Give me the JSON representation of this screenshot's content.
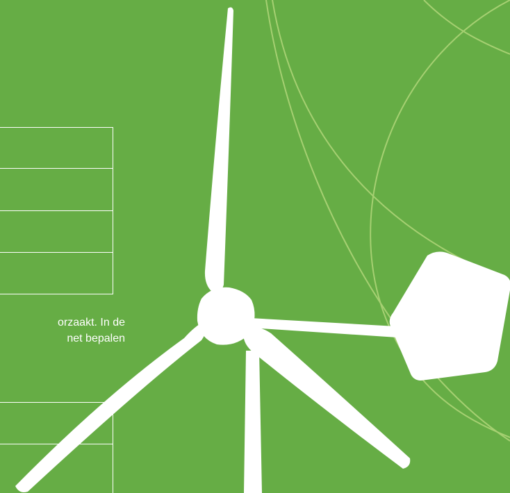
{
  "colors": {
    "background": "#66ad45",
    "arc": "#a6d072",
    "foreground": "#ffffff"
  },
  "text": {
    "line1": "orzaakt. In de",
    "line2": "net bepalen"
  },
  "icons": {
    "turbine": "wind-turbine-icon"
  }
}
